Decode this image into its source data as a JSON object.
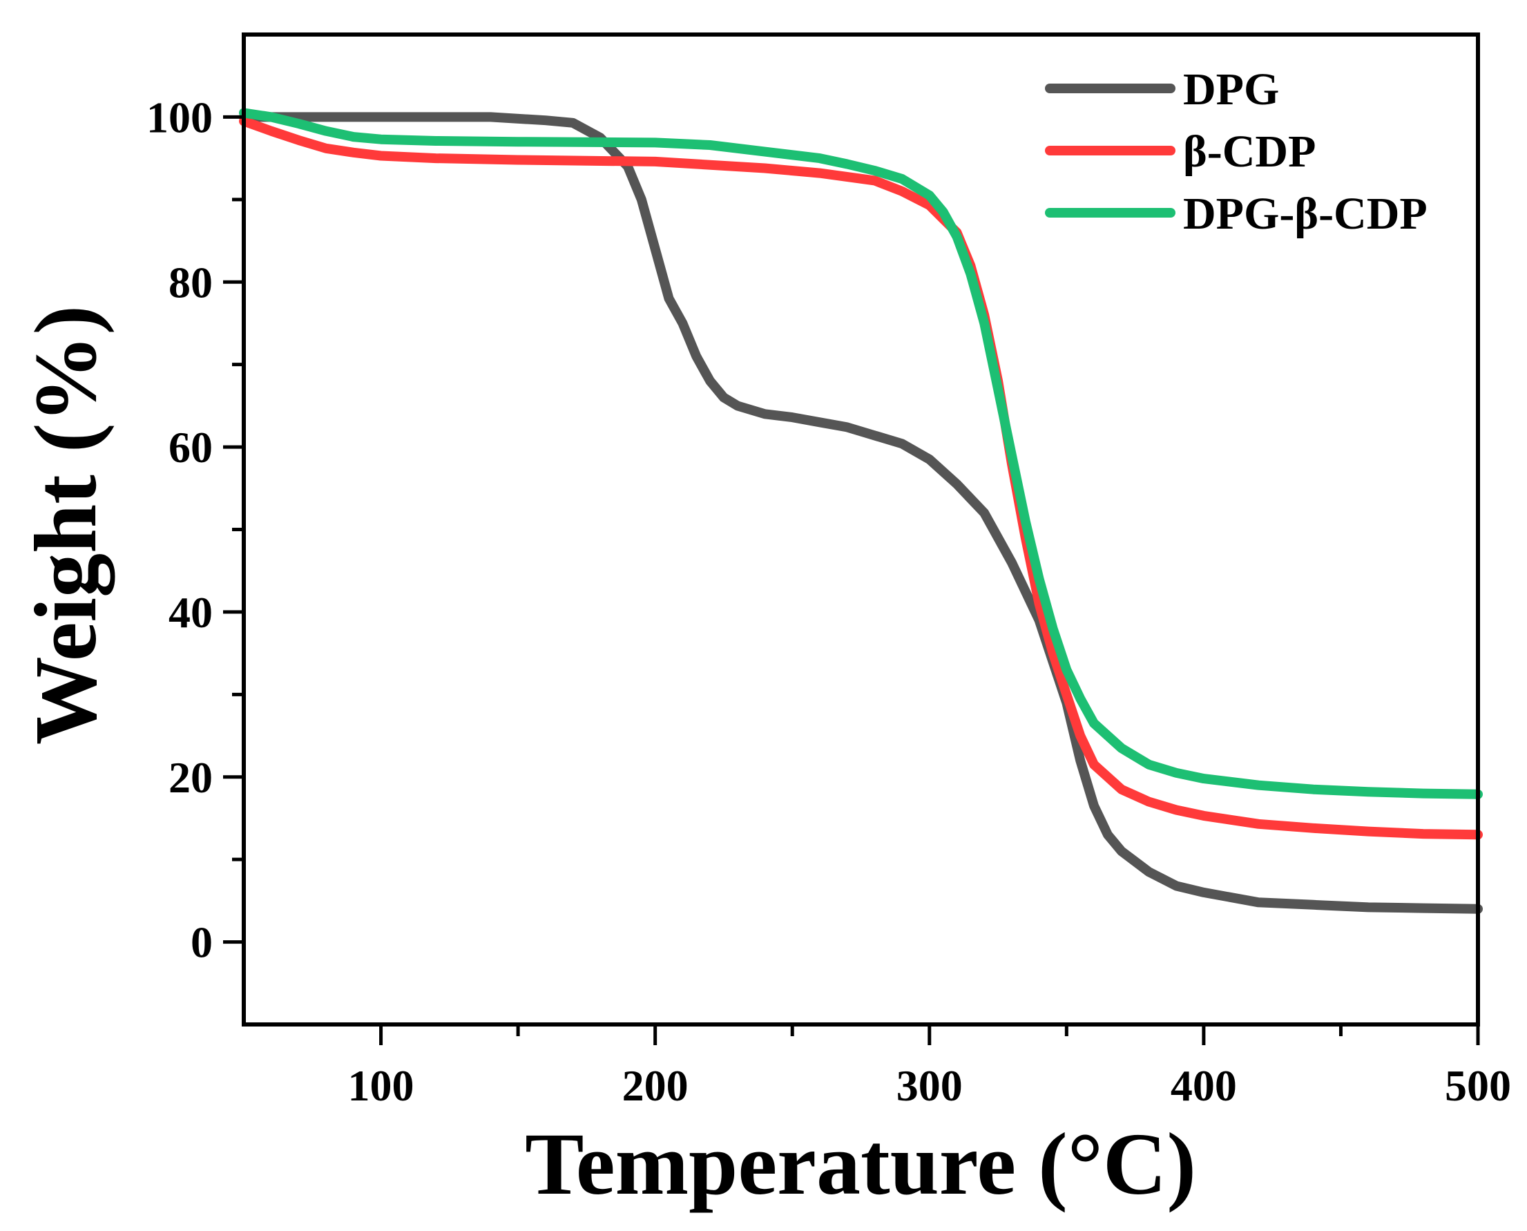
{
  "chart_data": {
    "type": "line",
    "title": "",
    "xlabel": "Temperature (°C)",
    "ylabel": "Weight (%)",
    "xlim": [
      50,
      500
    ],
    "ylim": [
      -10,
      110
    ],
    "xticks": [
      100,
      200,
      300,
      400,
      500
    ],
    "yticks": [
      0,
      20,
      40,
      60,
      80,
      100
    ],
    "x_minor_ticks": [
      150,
      250,
      350,
      450
    ],
    "y_minor_ticks": [
      10,
      30,
      50,
      70,
      90
    ],
    "grid": false,
    "legend_position": "top-right",
    "series": [
      {
        "name": "DPG",
        "color": "#555555",
        "points": [
          [
            50,
            100
          ],
          [
            100,
            100
          ],
          [
            140,
            100
          ],
          [
            160,
            99.6
          ],
          [
            170,
            99.3
          ],
          [
            180,
            97.5
          ],
          [
            190,
            94
          ],
          [
            195,
            90
          ],
          [
            200,
            84
          ],
          [
            205,
            78
          ],
          [
            210,
            75
          ],
          [
            215,
            71
          ],
          [
            220,
            68
          ],
          [
            225,
            66
          ],
          [
            230,
            65
          ],
          [
            240,
            64
          ],
          [
            250,
            63.6
          ],
          [
            260,
            63
          ],
          [
            270,
            62.4
          ],
          [
            280,
            61.4
          ],
          [
            290,
            60.4
          ],
          [
            300,
            58.5
          ],
          [
            310,
            55.5
          ],
          [
            320,
            52
          ],
          [
            330,
            46
          ],
          [
            340,
            39
          ],
          [
            350,
            29
          ],
          [
            355,
            22
          ],
          [
            360,
            16.5
          ],
          [
            365,
            13
          ],
          [
            370,
            11
          ],
          [
            380,
            8.5
          ],
          [
            390,
            6.8
          ],
          [
            400,
            6
          ],
          [
            420,
            4.8
          ],
          [
            440,
            4.5
          ],
          [
            460,
            4.2
          ],
          [
            480,
            4.1
          ],
          [
            500,
            4
          ]
        ]
      },
      {
        "name": "β-CDP",
        "color": "#ff3a3a",
        "points": [
          [
            50,
            99.5
          ],
          [
            60,
            98.3
          ],
          [
            70,
            97.2
          ],
          [
            80,
            96.2
          ],
          [
            90,
            95.7
          ],
          [
            100,
            95.3
          ],
          [
            120,
            95
          ],
          [
            150,
            94.8
          ],
          [
            200,
            94.6
          ],
          [
            240,
            93.8
          ],
          [
            260,
            93.2
          ],
          [
            280,
            92.3
          ],
          [
            290,
            91
          ],
          [
            300,
            89.3
          ],
          [
            310,
            86
          ],
          [
            315,
            82
          ],
          [
            320,
            76
          ],
          [
            325,
            68
          ],
          [
            330,
            58
          ],
          [
            335,
            49
          ],
          [
            340,
            41
          ],
          [
            345,
            35
          ],
          [
            350,
            30
          ],
          [
            355,
            25
          ],
          [
            360,
            21.5
          ],
          [
            370,
            18.5
          ],
          [
            380,
            17
          ],
          [
            390,
            16
          ],
          [
            400,
            15.3
          ],
          [
            420,
            14.3
          ],
          [
            440,
            13.8
          ],
          [
            460,
            13.4
          ],
          [
            480,
            13.1
          ],
          [
            500,
            13
          ]
        ]
      },
      {
        "name": "DPG-β-CDP",
        "color": "#1dbf73",
        "points": [
          [
            50,
            100.5
          ],
          [
            60,
            100
          ],
          [
            70,
            99.2
          ],
          [
            80,
            98.3
          ],
          [
            90,
            97.6
          ],
          [
            100,
            97.3
          ],
          [
            120,
            97.1
          ],
          [
            150,
            97
          ],
          [
            200,
            96.9
          ],
          [
            220,
            96.6
          ],
          [
            240,
            95.8
          ],
          [
            260,
            95
          ],
          [
            270,
            94.3
          ],
          [
            280,
            93.5
          ],
          [
            290,
            92.5
          ],
          [
            300,
            90.5
          ],
          [
            305,
            88.5
          ],
          [
            310,
            85.5
          ],
          [
            315,
            81
          ],
          [
            320,
            75
          ],
          [
            325,
            67
          ],
          [
            330,
            59
          ],
          [
            335,
            51
          ],
          [
            340,
            44
          ],
          [
            345,
            38
          ],
          [
            350,
            33
          ],
          [
            355,
            29.5
          ],
          [
            360,
            26.5
          ],
          [
            370,
            23.5
          ],
          [
            380,
            21.5
          ],
          [
            390,
            20.5
          ],
          [
            400,
            19.8
          ],
          [
            420,
            19
          ],
          [
            440,
            18.5
          ],
          [
            460,
            18.2
          ],
          [
            480,
            18
          ],
          [
            500,
            17.9
          ]
        ]
      }
    ]
  }
}
